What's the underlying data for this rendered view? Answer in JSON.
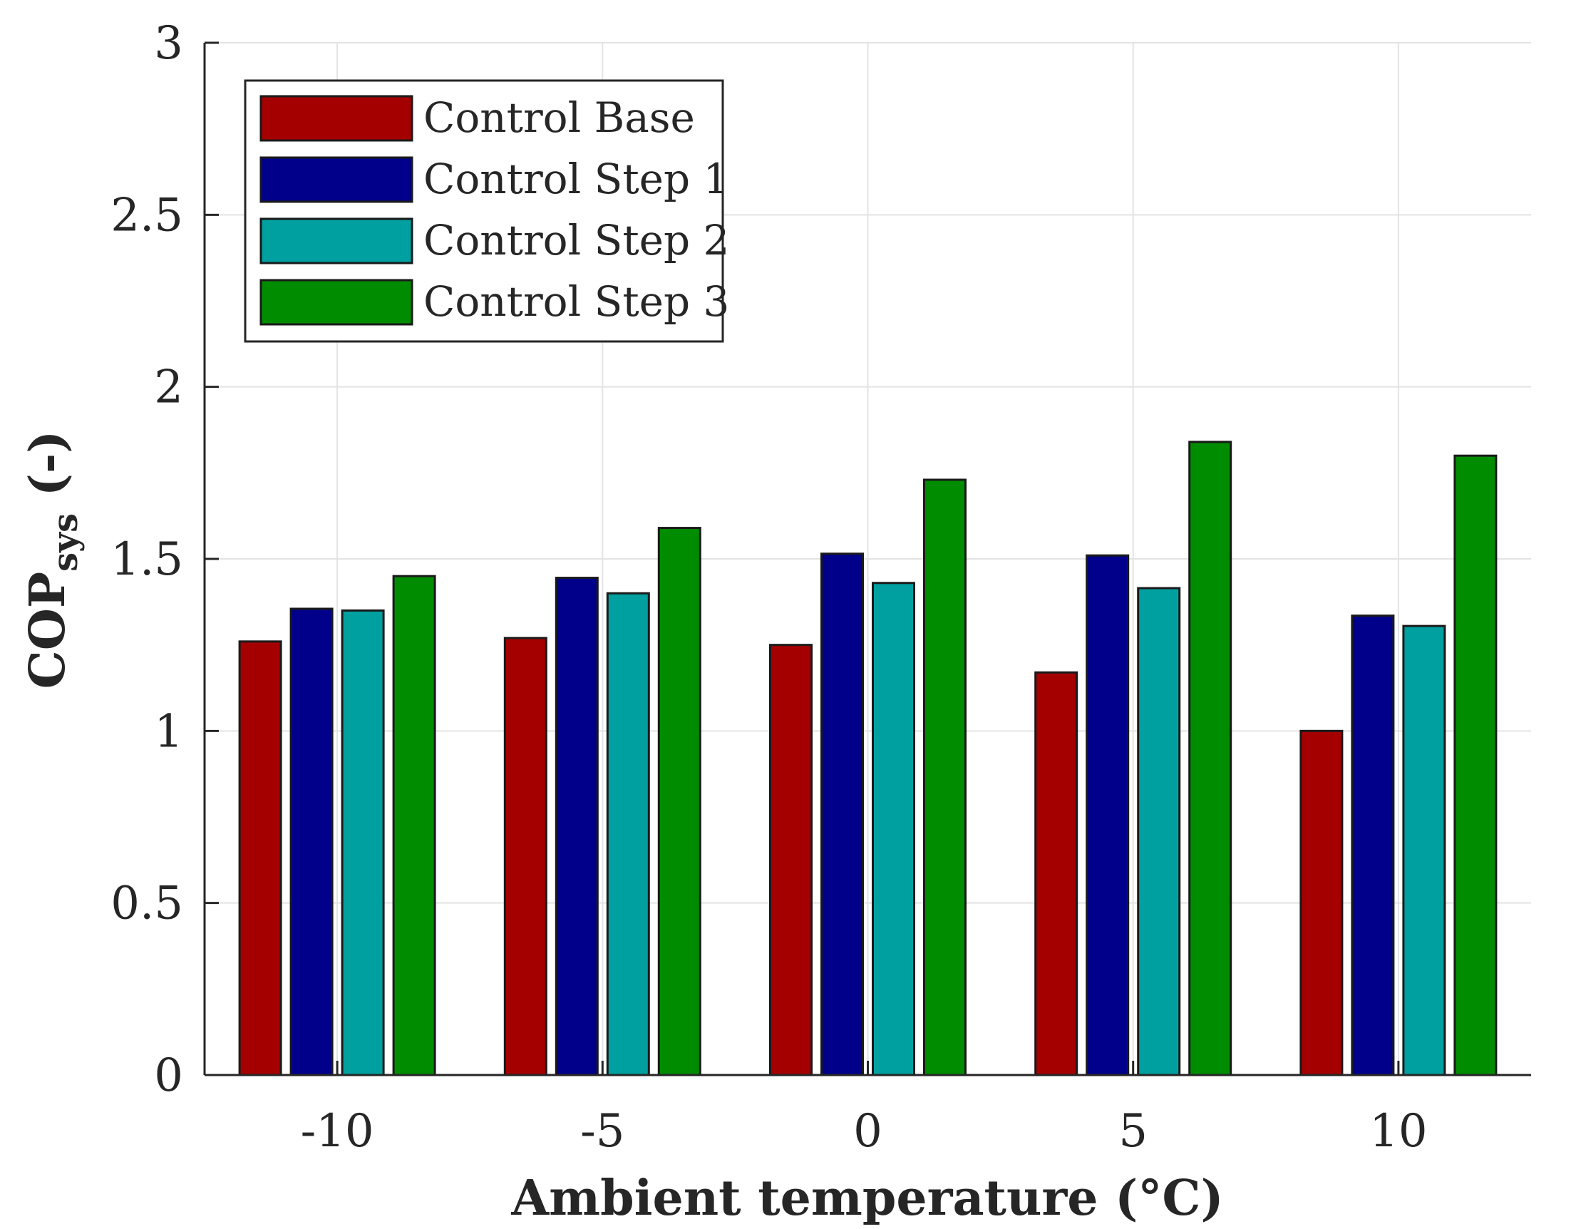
{
  "chart_data": {
    "type": "bar",
    "title": "",
    "xlabel": "Ambient temperature (°C)",
    "ylabel": {
      "main": "COP",
      "subscript": "sys",
      "suffix": " (-)"
    },
    "categories": [
      "-10",
      "-5",
      "0",
      "5",
      "10"
    ],
    "ylim": [
      0,
      3
    ],
    "yticks": [
      0,
      0.5,
      1,
      1.5,
      2,
      2.5,
      3
    ],
    "ytick_labels": [
      "0",
      "0.5",
      "1",
      "1.5",
      "2",
      "2.5",
      "3"
    ],
    "grid": true,
    "legend_position": "top-left",
    "series": [
      {
        "name": "Control Base",
        "color": "#a50000",
        "values": [
          1.26,
          1.27,
          1.25,
          1.17,
          1.0
        ]
      },
      {
        "name": "Control Step 1",
        "color": "#00008b",
        "values": [
          1.355,
          1.445,
          1.515,
          1.51,
          1.335
        ]
      },
      {
        "name": "Control Step 2",
        "color": "#00a0a0",
        "values": [
          1.35,
          1.4,
          1.43,
          1.415,
          1.305
        ]
      },
      {
        "name": "Control Step 3",
        "color": "#008c00",
        "values": [
          1.45,
          1.59,
          1.73,
          1.84,
          1.8
        ]
      }
    ]
  }
}
